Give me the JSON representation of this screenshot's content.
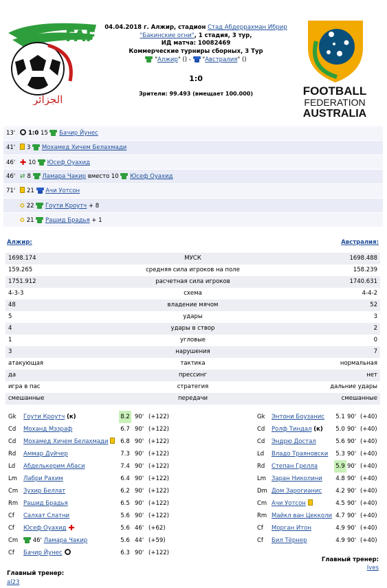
{
  "match": {
    "date_place": "04.04.2018 г. Алжир, стадион",
    "stadium": "Стад Абдеррахман Ибрир",
    "weather_link": "\"Бакинские огни\"",
    "stage": ", 1 стадия, 3 тур,",
    "id_label": "ИД матча: 10082469",
    "tournament": "Коммерческие турниры сборных, 3 Тур",
    "home_link": "Алжир",
    "away_link": "Австралия",
    "home_extra": "\" ()",
    "dash": " - ",
    "away_extra": "\" ()",
    "quote_open": "\"",
    "score": "1:0",
    "attendance": "Зрители: 99.493 (вмещает 100.000)"
  },
  "logos": {
    "home_text": "الجزائر",
    "away_line1": "FOOTBALL",
    "away_line2": "FEDERATION",
    "away_line3": "AUSTRALIA"
  },
  "events": [
    {
      "min": "13'",
      "icon": "ball",
      "pre": "1:0",
      "num": "15",
      "player": "Бачир Йунес",
      "post": "",
      "team": "g"
    },
    {
      "min": "41'",
      "icon": "yellow",
      "pre": "",
      "num": "3",
      "player": "Мохамед Хичем Белахмади",
      "post": "",
      "team": "g"
    },
    {
      "min": "46'",
      "icon": "red-cross",
      "pre": "",
      "num": "10",
      "player": "Юсеф Оуахид",
      "post": "",
      "team": "g"
    },
    {
      "min": "46'",
      "icon": "swap",
      "pre": "",
      "num": "8",
      "player": "Ламара Чакир",
      "post": " вместо 10 ",
      "player2": "Юсеф Оуахид",
      "team": "g"
    },
    {
      "min": "71'",
      "icon": "yellow",
      "pre": "",
      "num": "21",
      "player": "Ачи Уотсон",
      "post": "",
      "team": "b"
    },
    {
      "min": "",
      "icon": "star",
      "pre": "",
      "num": "22",
      "player": "Гоути Кроутч",
      "post": " + 8",
      "team": "g"
    },
    {
      "min": "",
      "icon": "star",
      "pre": "",
      "num": "21",
      "player": "Рашид Брадья",
      "post": " + 1",
      "team": "g"
    }
  ],
  "teams": {
    "home": "Алжир:",
    "away": "Австралия:"
  },
  "stats": [
    {
      "l": "1698.174",
      "c": "МУСК",
      "r": "1698.488"
    },
    {
      "l": "159.265",
      "c": "средняя сила игроков на поле",
      "r": "158.239"
    },
    {
      "l": "1751.912",
      "c": "расчетная сила игроков",
      "r": "1740.631"
    },
    {
      "l": "4-3-3",
      "c": "схема",
      "r": "4-4-2"
    },
    {
      "l": "48",
      "c": "владение мячом",
      "r": "52"
    },
    {
      "l": "5",
      "c": "удары",
      "r": "3"
    },
    {
      "l": "4",
      "c": "удары в створ",
      "r": "2"
    },
    {
      "l": "1",
      "c": "угловые",
      "r": "0"
    },
    {
      "l": "3",
      "c": "нарушения",
      "r": "7"
    },
    {
      "l": "атакующая",
      "c": "тактика",
      "r": "нормальная"
    },
    {
      "l": "да",
      "c": "прессинг",
      "r": "нет"
    },
    {
      "l": "игра в пас",
      "c": "стратегия",
      "r": "дальние удары"
    },
    {
      "l": "смешанные",
      "c": "передачи",
      "r": "смешанные"
    }
  ],
  "lineup_home": [
    {
      "pos": "Gk",
      "name": "Гоути Кроутч",
      "cap": "(к)",
      "rating": "8.2",
      "hl": true,
      "min": "90'",
      "plus": "(+122)",
      "tag": ""
    },
    {
      "pos": "Cd",
      "name": "Моханд Мэзраф",
      "cap": "",
      "rating": "6.7",
      "hl": false,
      "min": "90'",
      "plus": "(+122)",
      "tag": ""
    },
    {
      "pos": "Cd",
      "name": "Мохамед Хичем Белахмади",
      "cap": "",
      "rating": "6.8",
      "hl": false,
      "min": "90'",
      "plus": "(+122)",
      "tag": "yellow"
    },
    {
      "pos": "Rd",
      "name": "Аммар Дуйчер",
      "cap": "",
      "rating": "7.3",
      "hl": false,
      "min": "90'",
      "plus": "(+122)",
      "tag": ""
    },
    {
      "pos": "Ld",
      "name": "Абделькерим Абаси",
      "cap": "",
      "rating": "7.4",
      "hl": false,
      "min": "90'",
      "plus": "(+122)",
      "tag": ""
    },
    {
      "pos": "Lm",
      "name": "Лабри Рахим",
      "cap": "",
      "rating": "6.4",
      "hl": false,
      "min": "90'",
      "plus": "(+122)",
      "tag": ""
    },
    {
      "pos": "Cm",
      "name": "Зухир Беллат",
      "cap": "",
      "rating": "6.2",
      "hl": false,
      "min": "90'",
      "plus": "(+122)",
      "tag": ""
    },
    {
      "pos": "Rm",
      "name": "Рашид Брадья",
      "cap": "",
      "rating": "6.5",
      "hl": false,
      "min": "90'",
      "plus": "(+122)",
      "tag": ""
    },
    {
      "pos": "Cf",
      "name": "Салхат Слатни",
      "cap": "",
      "rating": "5.6",
      "hl": false,
      "min": "90'",
      "plus": "(+122)",
      "tag": ""
    },
    {
      "pos": "Cf",
      "name": "Юсеф Оуахид",
      "cap": "",
      "rating": "5.6",
      "hl": false,
      "min": "46'",
      "plus": "(+62)",
      "tag": "red-cross"
    },
    {
      "pos": "Cm",
      "name": "Ламара Чакир",
      "cap": "",
      "rating": "5.6",
      "hl": false,
      "min": "44'",
      "plus": "(+59)",
      "tag": "",
      "sub_in": "46'"
    },
    {
      "pos": "Cf",
      "name": "Бачир Йунес",
      "cap": "",
      "rating": "6.3",
      "hl": false,
      "min": "90'",
      "plus": "(+122)",
      "tag": "ball"
    }
  ],
  "lineup_away": [
    {
      "pos": "Gk",
      "name": "Энтони Боузанис",
      "cap": "",
      "rating": "5.1",
      "hl": false,
      "min": "90'",
      "plus": "(+40)",
      "tag": ""
    },
    {
      "pos": "Cd",
      "name": "Ролф Тиндал",
      "cap": "(к)",
      "rating": "5.0",
      "hl": false,
      "min": "90'",
      "plus": "(+40)",
      "tag": ""
    },
    {
      "pos": "Cd",
      "name": "Эндрю Достал",
      "cap": "",
      "rating": "5.6",
      "hl": false,
      "min": "90'",
      "plus": "(+40)",
      "tag": ""
    },
    {
      "pos": "Ld",
      "name": "Владо Траяновски",
      "cap": "",
      "rating": "5.3",
      "hl": false,
      "min": "90'",
      "plus": "(+40)",
      "tag": ""
    },
    {
      "pos": "Rd",
      "name": "Степан Грелла",
      "cap": "",
      "rating": "5.9",
      "hl": true,
      "min": "90'",
      "plus": "(+40)",
      "tag": ""
    },
    {
      "pos": "Lm",
      "name": "Заран Николини",
      "cap": "",
      "rating": "4.8",
      "hl": false,
      "min": "90'",
      "plus": "(+40)",
      "tag": ""
    },
    {
      "pos": "Dm",
      "name": "Дом Зарогианис",
      "cap": "",
      "rating": "4.2",
      "hl": false,
      "min": "90'",
      "plus": "(+40)",
      "tag": ""
    },
    {
      "pos": "Cm",
      "name": "Ачи Уотсон",
      "cap": "",
      "rating": "4.5",
      "hl": false,
      "min": "90'",
      "plus": "(+40)",
      "tag": "yellow"
    },
    {
      "pos": "Rm",
      "name": "Майкл ван Цекколи",
      "cap": "",
      "rating": "4.7",
      "hl": false,
      "min": "90'",
      "plus": "(+40)",
      "tag": ""
    },
    {
      "pos": "Cf",
      "name": "Морган Итон",
      "cap": "",
      "rating": "4.9",
      "hl": false,
      "min": "90'",
      "plus": "(+40)",
      "tag": ""
    },
    {
      "pos": "Cf",
      "name": "Бил Тёрнер",
      "cap": "",
      "rating": "4.9",
      "hl": false,
      "min": "90'",
      "plus": "(+40)",
      "tag": ""
    }
  ],
  "coach": {
    "label": "Главный тренер:",
    "home": "al23",
    "away": "Ives"
  }
}
